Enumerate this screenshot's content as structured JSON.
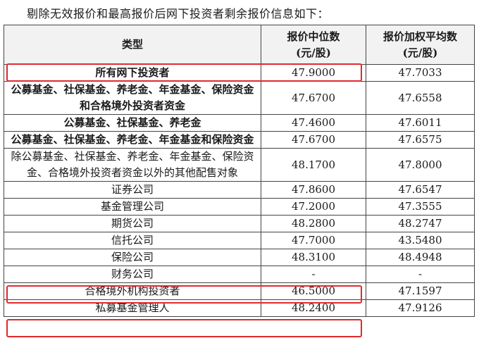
{
  "intro_text": "剔除无效报价和最高报价后网下投资者剩余报价信息如下：",
  "table": {
    "headers": {
      "type": "类型",
      "median": "报价中位数\n(元/股)",
      "weighted": "报价加权平均数\n(元/股)"
    },
    "rows": [
      {
        "type": "所有网下投资者",
        "median": "47.9000",
        "weighted": "47.7033",
        "bold": true
      },
      {
        "type": "公募基金、社保基金、养老金、年金基金、保险资金和合格境外投资者资金",
        "median": "47.6700",
        "weighted": "47.6558",
        "bold": true
      },
      {
        "type": "公募基金、社保基金、养老金",
        "median": "47.4600",
        "weighted": "47.6011",
        "bold": true
      },
      {
        "type": "公募基金、社保基金、养老金、年金基金和保险资金",
        "median": "47.6700",
        "weighted": "47.6575",
        "bold": true
      },
      {
        "type": "除公募基金、社保基金、养老金、年金基金、保险资金、合格境外投资者资金以外的其他配售对象",
        "median": "48.1700",
        "weighted": "47.8000",
        "bold": false
      },
      {
        "type": "证券公司",
        "median": "47.8600",
        "weighted": "47.6547",
        "bold": false
      },
      {
        "type": "基金管理公司",
        "median": "47.2000",
        "weighted": "47.3555",
        "bold": false
      },
      {
        "type": "期货公司",
        "median": "48.2800",
        "weighted": "48.2747",
        "bold": false
      },
      {
        "type": "信托公司",
        "median": "47.7000",
        "weighted": "43.5480",
        "bold": false
      },
      {
        "type": "保险公司",
        "median": "48.3100",
        "weighted": "48.4948",
        "bold": false
      },
      {
        "type": "财务公司",
        "median": "-",
        "weighted": "-",
        "bold": false
      },
      {
        "type": "合格境外机构投资者",
        "median": "46.5000",
        "weighted": "47.1597",
        "bold": false
      },
      {
        "type": "私募基金管理人",
        "median": "48.2400",
        "weighted": "47.9126",
        "bold": false
      }
    ]
  },
  "highlight_color": "#e0292e"
}
